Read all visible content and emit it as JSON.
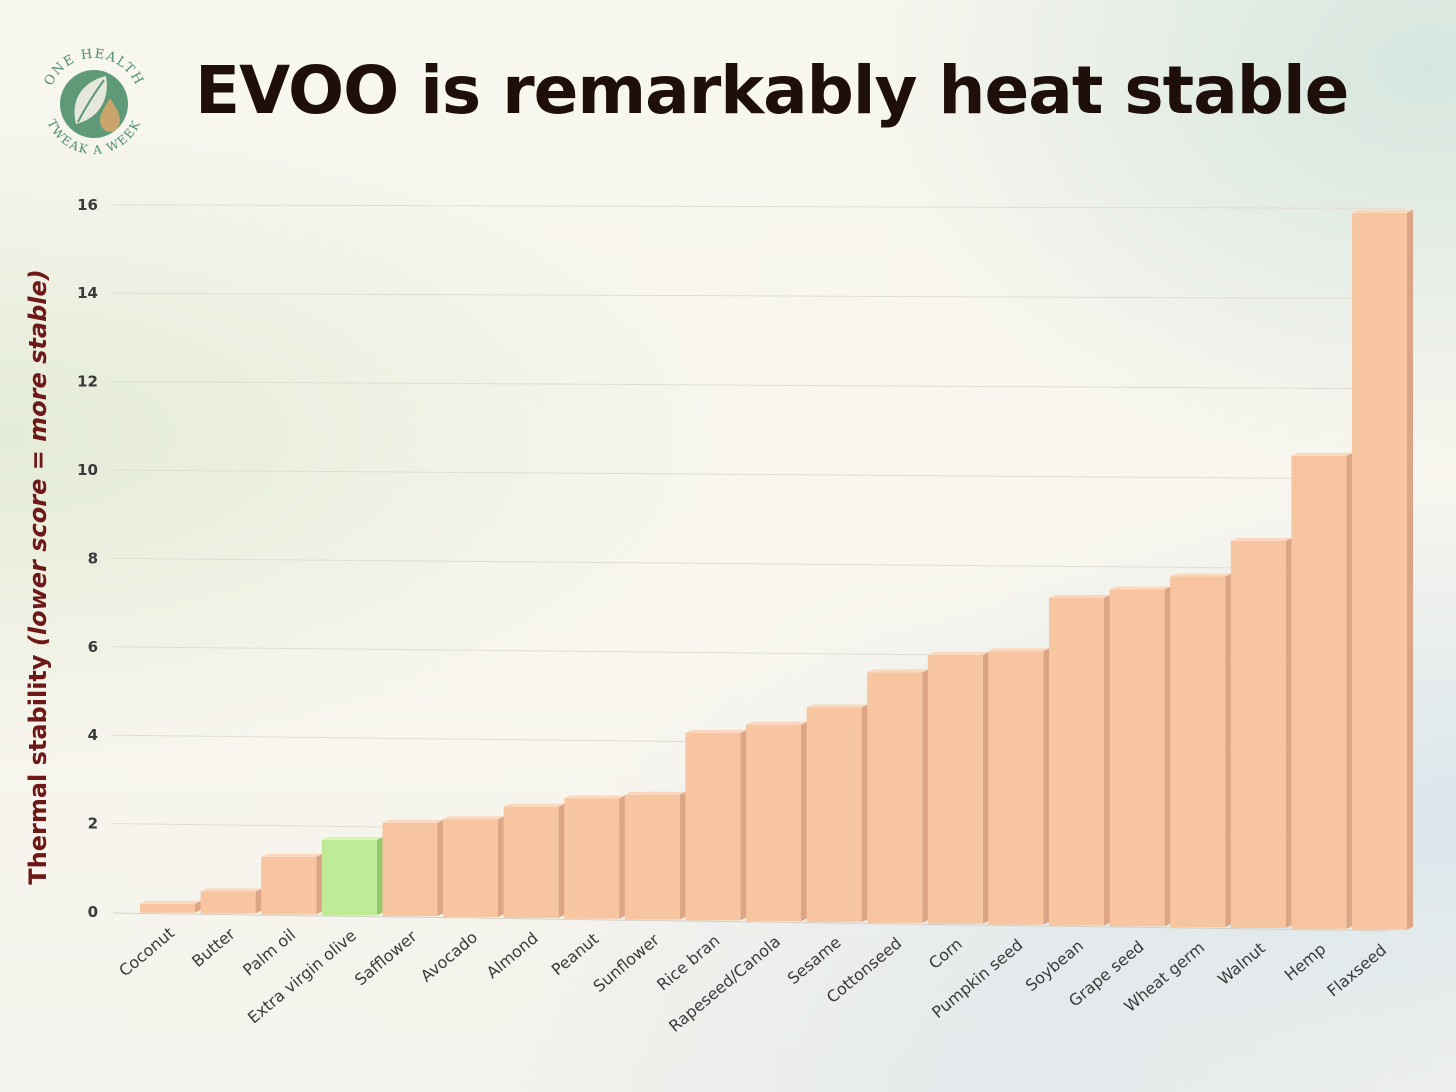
{
  "logo": {
    "top_text": "ONE HEALTH",
    "bottom_text": "TWEAK A WEEK",
    "icon": "leaf-and-drop-icon",
    "color": "#4f8c6e"
  },
  "chart_data": {
    "type": "bar",
    "title": "EVOO is remarkably heat stable",
    "ylabel_main": "Thermal stability",
    "ylabel_note": "(lower score = more stable)",
    "xlabel": "",
    "ylim": [
      0,
      16
    ],
    "yticks": [
      "0",
      "2",
      "4",
      "6",
      "8",
      "10",
      "12",
      "14",
      "16"
    ],
    "grid": true,
    "categories": [
      "Coconut",
      "Butter",
      "Palm oil",
      "Extra virgin olive",
      "Safflower",
      "Avocado",
      "Almond",
      "Peanut",
      "Sunflower",
      "Rice bran",
      "Rapeseed/Canola",
      "Sesame",
      "Cottonseed",
      "Corn",
      "Pumpkin seed",
      "Soybean",
      "Grape seed",
      "Wheat germ",
      "Walnut",
      "Hemp",
      "Flaxseed"
    ],
    "values": [
      0.2,
      0.5,
      1.3,
      1.7,
      2.1,
      2.2,
      2.5,
      2.7,
      2.8,
      4.2,
      4.4,
      4.8,
      5.6,
      6.0,
      6.1,
      7.3,
      7.5,
      7.8,
      8.6,
      10.5,
      15.9
    ],
    "highlight": "Extra virgin olive",
    "colors": {
      "bar": "#f7c6a0",
      "bar_side": "#dba586",
      "bar_top": "#fbd8bd",
      "highlight": "#bfea96",
      "highlight_side": "#93c86c",
      "highlight_top": "#d6f5b6",
      "grid": "#e0ddd3",
      "tick_text": "#3a3a3a",
      "ylabel": "#6e1818"
    }
  }
}
